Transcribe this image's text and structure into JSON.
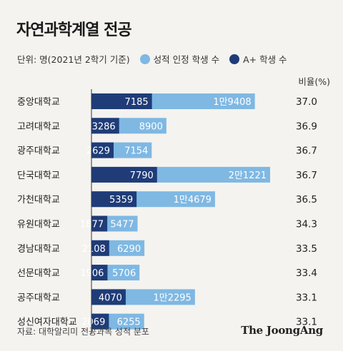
{
  "colors": {
    "light": "#7fb8e3",
    "dark": "#1f3c78",
    "axis": "#333333"
  },
  "chart_data": {
    "type": "bar",
    "title": "자연과학계열 전공",
    "unit_note": "단위: 명(2021년 2학기 기준)",
    "ratio_header": "비율(%)",
    "series": [
      {
        "name": "성적 인정 학생 수",
        "values": [
          19408,
          8900,
          7154,
          21221,
          14679,
          5477,
          6290,
          5706,
          12295,
          6255
        ],
        "labels": [
          "1만9408",
          "8900",
          "7154",
          "2만1221",
          "1만4679",
          "5477",
          "6290",
          "5706",
          "1만2295",
          "6255"
        ]
      },
      {
        "name": "A+ 학생 수",
        "values": [
          7185,
          3286,
          2629,
          7790,
          5359,
          1877,
          2108,
          1906,
          4070,
          2069
        ],
        "labels": [
          "7185",
          "3286",
          "2629",
          "7790",
          "5359",
          "1877",
          "2108",
          "1906",
          "4070",
          "2069"
        ]
      }
    ],
    "categories": [
      "중앙대학교",
      "고려대학교",
      "광주대학교",
      "단국대학교",
      "가천대학교",
      "유원대학교",
      "경남대학교",
      "선문대학교",
      "공주대학교",
      "성신여자대학교"
    ],
    "ratios": [
      "37.0",
      "36.9",
      "36.7",
      "36.7",
      "36.5",
      "34.3",
      "33.5",
      "33.4",
      "33.1",
      "33.1"
    ]
  },
  "footer": {
    "source": "자료: 대학알리미 전공과목 성적 분포",
    "brand": "The JoongAng"
  }
}
